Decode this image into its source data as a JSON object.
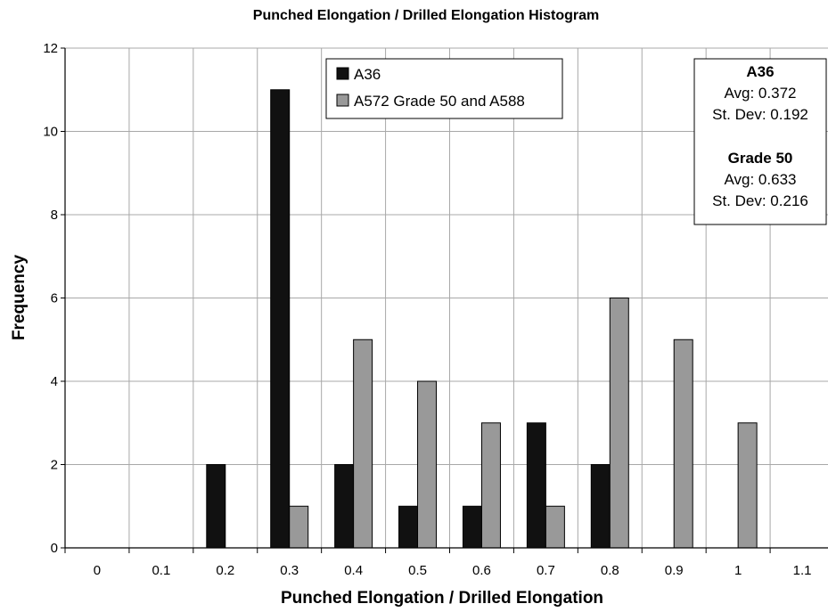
{
  "chart_data": {
    "type": "bar",
    "title": "Punched Elongation / Drilled Elongation Histogram",
    "xlabel": "Punched Elongation / Drilled Elongation",
    "ylabel": "Frequency",
    "categories": [
      "0",
      "0.1",
      "0.2",
      "0.3",
      "0.4",
      "0.5",
      "0.6",
      "0.7",
      "0.8",
      "0.9",
      "1",
      "1.1"
    ],
    "series": [
      {
        "name": "A36",
        "color": "#111111",
        "values": [
          0,
          0,
          2,
          11,
          2,
          1,
          1,
          3,
          2,
          0,
          0,
          0
        ]
      },
      {
        "name": "A572 Grade 50 and A588",
        "color": "#999999",
        "values": [
          0,
          0,
          0,
          1,
          5,
          4,
          3,
          1,
          6,
          5,
          3,
          0
        ]
      }
    ],
    "ylim": [
      0,
      12
    ],
    "yticks": [
      0,
      2,
      4,
      6,
      8,
      10,
      12
    ],
    "grid": true,
    "legend_position": "top-center",
    "stats_box": [
      {
        "heading": "A36",
        "avg": "Avg: 0.372",
        "stdev": "St. Dev: 0.192"
      },
      {
        "heading": "Grade 50",
        "avg": "Avg: 0.633",
        "stdev": "St. Dev: 0.216"
      }
    ]
  }
}
